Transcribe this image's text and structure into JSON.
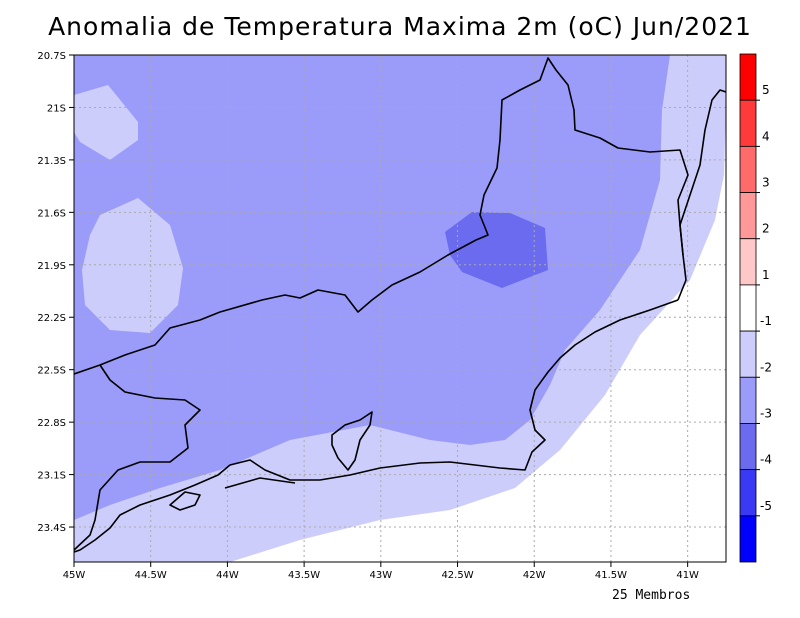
{
  "title": "Anomalia de Temperatura Maxima 2m (oC) Jun/2021",
  "footer": "25 Membros",
  "map": {
    "lon_range": [
      -45.0,
      -40.75
    ],
    "lat_range": [
      -23.6,
      -20.7
    ],
    "lon_ticks": [
      {
        "value": -45.0,
        "label": "45W"
      },
      {
        "value": -44.5,
        "label": "44.5W"
      },
      {
        "value": -44.0,
        "label": "44W"
      },
      {
        "value": -43.5,
        "label": "43.5W"
      },
      {
        "value": -43.0,
        "label": "43W"
      },
      {
        "value": -42.5,
        "label": "42.5W"
      },
      {
        "value": -42.0,
        "label": "42W"
      },
      {
        "value": -41.5,
        "label": "41.5W"
      },
      {
        "value": -41.0,
        "label": "41W"
      }
    ],
    "lat_ticks": [
      {
        "value": -20.7,
        "label": "20.7S"
      },
      {
        "value": -21.0,
        "label": "21S"
      },
      {
        "value": -21.3,
        "label": "21.3S"
      },
      {
        "value": -21.6,
        "label": "21.6S"
      },
      {
        "value": -21.9,
        "label": "21.9S"
      },
      {
        "value": -22.2,
        "label": "22.2S"
      },
      {
        "value": -22.5,
        "label": "22.5S"
      },
      {
        "value": -22.8,
        "label": "22.8S"
      },
      {
        "value": -23.1,
        "label": "23.1S"
      },
      {
        "value": -23.4,
        "label": "23.4S"
      }
    ],
    "grid": true,
    "colors": {
      "bin_-3_-2": "#9b9bfa",
      "bin_-4_-3": "#6b6bf0",
      "bin_-2_-1": "#cdcdfc",
      "coastline": "#000000",
      "grid": "#aaaaaa"
    }
  },
  "colorbar": {
    "labels": [
      "5",
      "4",
      "3",
      "2",
      "1",
      "-1",
      "-2",
      "-3",
      "-4",
      "-5"
    ],
    "colors": [
      "#ff0000",
      "#ff3a3a",
      "#ff6a6a",
      "#ff9999",
      "#ffc8c8",
      "#ffffff",
      "#cdcdfc",
      "#9b9bfa",
      "#6b6bf0",
      "#3a3af5",
      "#0000ff"
    ]
  }
}
